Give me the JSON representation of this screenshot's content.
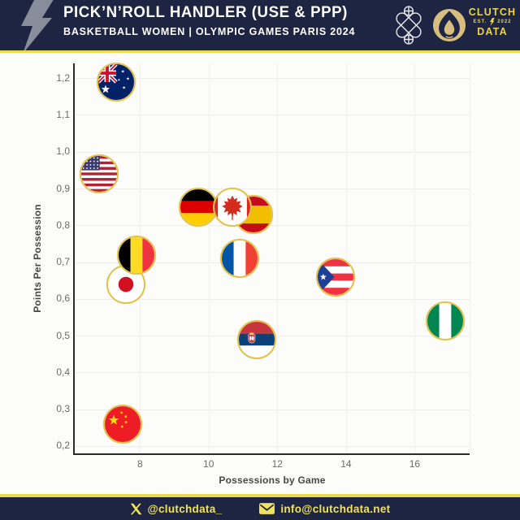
{
  "header": {
    "title": "PICK’N’ROLL HANDLER (USE & PPP)",
    "subtitle": "BASKETBALL WOMEN | OLYMPIC GAMES PARIS 2024",
    "brand": {
      "line1": "CLUTCH",
      "est": "EST.",
      "year": "2022",
      "line2": "DATA"
    }
  },
  "footer": {
    "twitter": "@clutchdata_",
    "email": "info@clutchdata.net"
  },
  "colors": {
    "navy": "#1D2542",
    "accent_yellow": "#E9D94F",
    "bubble_border_gold": "#E2C248",
    "brand_gold": "#E9D44C",
    "footer_text": "#F0E25E",
    "chart_background": "#FCFCFA",
    "gridline": "#EFEDE9",
    "axis": "#2B2B2B"
  },
  "chart_data": {
    "type": "scatter",
    "title": "Pick'n'Roll Handler (Use & PPP) - Basketball Women - Olympic Games Paris 2024",
    "xlabel": "Possessions by Game",
    "ylabel": "Points Per Possession",
    "xlim": [
      6.1,
      17.6
    ],
    "ylim": [
      0.18,
      1.24
    ],
    "grid": true,
    "legend": "none",
    "marker": "country-flag-circle",
    "x_ticks": [
      {
        "value": 8,
        "label": "8"
      },
      {
        "value": 10,
        "label": "10"
      },
      {
        "value": 12,
        "label": "12"
      },
      {
        "value": 14,
        "label": "14"
      },
      {
        "value": 16,
        "label": "16"
      }
    ],
    "y_ticks": [
      {
        "value": 1.2,
        "label": "1,2"
      },
      {
        "value": 1.1,
        "label": "1,1"
      },
      {
        "value": 1.0,
        "label": "1,0"
      },
      {
        "value": 0.9,
        "label": "0,9"
      },
      {
        "value": 0.8,
        "label": "0,8"
      },
      {
        "value": 0.7,
        "label": "0,7"
      },
      {
        "value": 0.6,
        "label": "0,6"
      },
      {
        "value": 0.5,
        "label": "0,5"
      },
      {
        "value": 0.4,
        "label": "0,4"
      },
      {
        "value": 0.3,
        "label": "0,3"
      },
      {
        "value": 0.2,
        "label": "0,2"
      }
    ],
    "points": [
      {
        "team": "China",
        "code": "chn",
        "x": 7.5,
        "y": 0.26
      },
      {
        "team": "Japan",
        "code": "jpn",
        "x": 7.6,
        "y": 0.64
      },
      {
        "team": "Belgium",
        "code": "bel",
        "x": 7.9,
        "y": 0.72
      },
      {
        "team": "United States",
        "code": "usa",
        "x": 6.8,
        "y": 0.94
      },
      {
        "team": "Australia",
        "code": "aus",
        "x": 7.3,
        "y": 1.19
      },
      {
        "team": "Germany",
        "code": "ger",
        "x": 9.7,
        "y": 0.85
      },
      {
        "team": "Spain",
        "code": "esp",
        "x": 11.3,
        "y": 0.83
      },
      {
        "team": "Canada",
        "code": "can",
        "x": 10.7,
        "y": 0.85
      },
      {
        "team": "France",
        "code": "fra",
        "x": 10.9,
        "y": 0.71
      },
      {
        "team": "Serbia",
        "code": "srb",
        "x": 11.4,
        "y": 0.49
      },
      {
        "team": "Puerto Rico",
        "code": "pur",
        "x": 13.7,
        "y": 0.66
      },
      {
        "team": "Nigeria",
        "code": "ngr",
        "x": 16.9,
        "y": 0.54
      }
    ]
  }
}
